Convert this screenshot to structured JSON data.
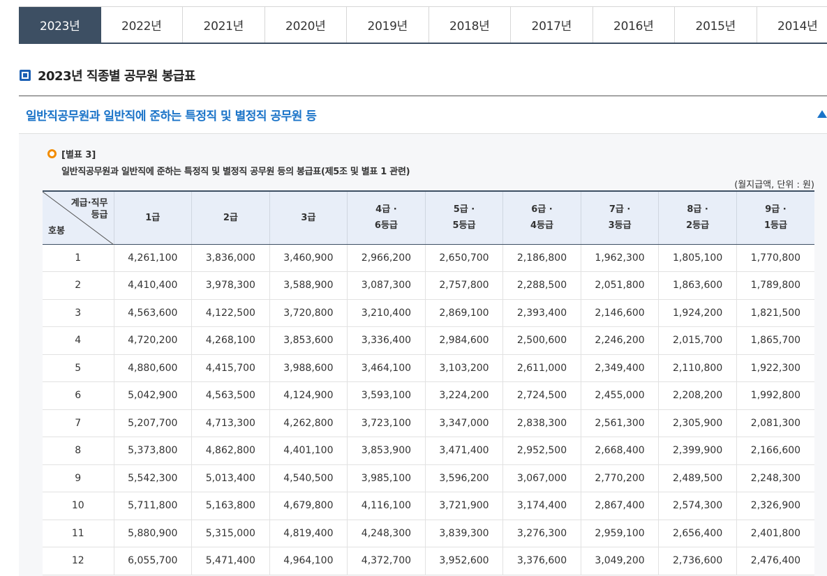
{
  "year_tabs": [
    "2023년",
    "2022년",
    "2021년",
    "2020년",
    "2019년",
    "2018년",
    "2017년",
    "2016년",
    "2015년",
    "2014년"
  ],
  "active_year_index": 0,
  "page_title": "2023년 직종별 공무원 봉급표",
  "section": {
    "header": "일반직공무원과 일반직에 준하는 특정직 및 별정직 공무원 등",
    "notice_label": "[별표 3]",
    "notice_desc": "일반직공무원과 일반직에 준하는 특정직 및 별정직 공무원 등의 봉급표(제5조 및 별표 1 관련)",
    "unit": "(월지급액, 단위 : 원)"
  },
  "table": {
    "corner_top_line1": "계급·직무",
    "corner_top_line2": "등급",
    "corner_bottom": "호봉",
    "columns": [
      {
        "line1": "1급",
        "line2": ""
      },
      {
        "line1": "2급",
        "line2": ""
      },
      {
        "line1": "3급",
        "line2": ""
      },
      {
        "line1": "4급 ·",
        "line2": "6등급"
      },
      {
        "line1": "5급 ·",
        "line2": "5등급"
      },
      {
        "line1": "6급 ·",
        "line2": "4등급"
      },
      {
        "line1": "7급 ·",
        "line2": "3등급"
      },
      {
        "line1": "8급 ·",
        "line2": "2등급"
      },
      {
        "line1": "9급 ·",
        "line2": "1등급"
      }
    ],
    "rows": [
      [
        "1",
        "4,261,100",
        "3,836,000",
        "3,460,900",
        "2,966,200",
        "2,650,700",
        "2,186,800",
        "1,962,300",
        "1,805,100",
        "1,770,800"
      ],
      [
        "2",
        "4,410,400",
        "3,978,300",
        "3,588,900",
        "3,087,300",
        "2,757,800",
        "2,288,500",
        "2,051,800",
        "1,863,600",
        "1,789,800"
      ],
      [
        "3",
        "4,563,600",
        "4,122,500",
        "3,720,800",
        "3,210,400",
        "2,869,100",
        "2,393,400",
        "2,146,600",
        "1,924,200",
        "1,821,500"
      ],
      [
        "4",
        "4,720,200",
        "4,268,100",
        "3,853,600",
        "3,336,400",
        "2,984,600",
        "2,500,600",
        "2,246,200",
        "2,015,700",
        "1,865,700"
      ],
      [
        "5",
        "4,880,600",
        "4,415,700",
        "3,988,600",
        "3,464,100",
        "3,103,200",
        "2,611,000",
        "2,349,400",
        "2,110,800",
        "1,922,300"
      ],
      [
        "6",
        "5,042,900",
        "4,563,500",
        "4,124,900",
        "3,593,100",
        "3,224,200",
        "2,724,500",
        "2,455,000",
        "2,208,200",
        "1,992,800"
      ],
      [
        "7",
        "5,207,700",
        "4,713,300",
        "4,262,800",
        "3,723,100",
        "3,347,000",
        "2,838,300",
        "2,561,300",
        "2,305,900",
        "2,081,300"
      ],
      [
        "8",
        "5,373,800",
        "4,862,800",
        "4,401,100",
        "3,853,900",
        "3,471,400",
        "2,952,500",
        "2,668,400",
        "2,399,900",
        "2,166,600"
      ],
      [
        "9",
        "5,542,300",
        "5,013,400",
        "4,540,500",
        "3,985,100",
        "3,596,200",
        "3,067,000",
        "2,770,200",
        "2,489,500",
        "2,248,300"
      ],
      [
        "10",
        "5,711,800",
        "5,163,800",
        "4,679,800",
        "4,116,100",
        "3,721,900",
        "3,174,400",
        "2,867,400",
        "2,574,300",
        "2,326,900"
      ],
      [
        "11",
        "5,880,900",
        "5,315,000",
        "4,819,400",
        "4,248,300",
        "3,839,300",
        "3,276,300",
        "2,959,100",
        "2,656,400",
        "2,401,800"
      ],
      [
        "12",
        "6,055,700",
        "5,471,400",
        "4,964,100",
        "4,372,700",
        "3,952,600",
        "3,376,600",
        "3,049,200",
        "2,736,600",
        "2,476,400"
      ]
    ]
  }
}
